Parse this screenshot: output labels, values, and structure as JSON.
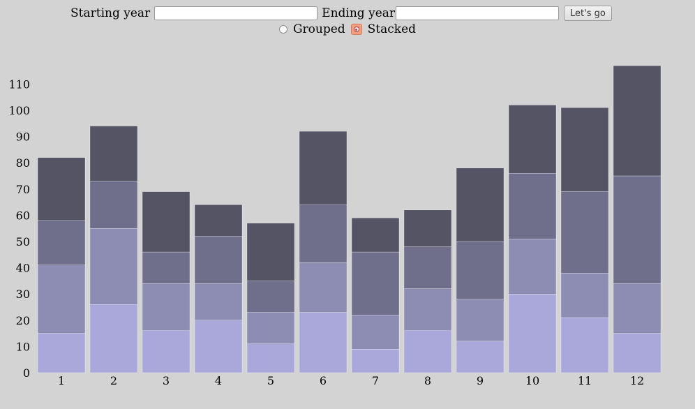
{
  "controls": {
    "start_label": "Starting year",
    "start_value": "",
    "end_label": "Ending year",
    "end_value": "",
    "go_label": "Let's go",
    "grouped_label": "Grouped",
    "stacked_label": "Stacked",
    "mode": "stacked"
  },
  "colors": [
    "#aaa8db",
    "#8d8cb3",
    "#6f6e8b",
    "#555465"
  ],
  "chart_data": {
    "type": "bar",
    "stacked": true,
    "categories": [
      "1",
      "2",
      "3",
      "4",
      "5",
      "6",
      "7",
      "8",
      "9",
      "10",
      "11",
      "12"
    ],
    "series": [
      {
        "values": [
          15,
          26,
          16,
          20,
          11,
          23,
          9,
          16,
          12,
          30,
          21,
          15
        ]
      },
      {
        "values": [
          26,
          29,
          18,
          14,
          12,
          19,
          13,
          16,
          16,
          21,
          17,
          19
        ]
      },
      {
        "values": [
          17,
          18,
          12,
          18,
          12,
          22,
          24,
          16,
          22,
          25,
          31,
          41
        ]
      },
      {
        "values": [
          24,
          21,
          23,
          12,
          22,
          28,
          13,
          14,
          28,
          26,
          32,
          42
        ]
      }
    ],
    "ylim": [
      0,
      117
    ],
    "yticks": [
      0,
      10,
      20,
      30,
      40,
      50,
      60,
      70,
      80,
      90,
      100,
      110
    ],
    "title": "",
    "xlabel": "",
    "ylabel": ""
  }
}
